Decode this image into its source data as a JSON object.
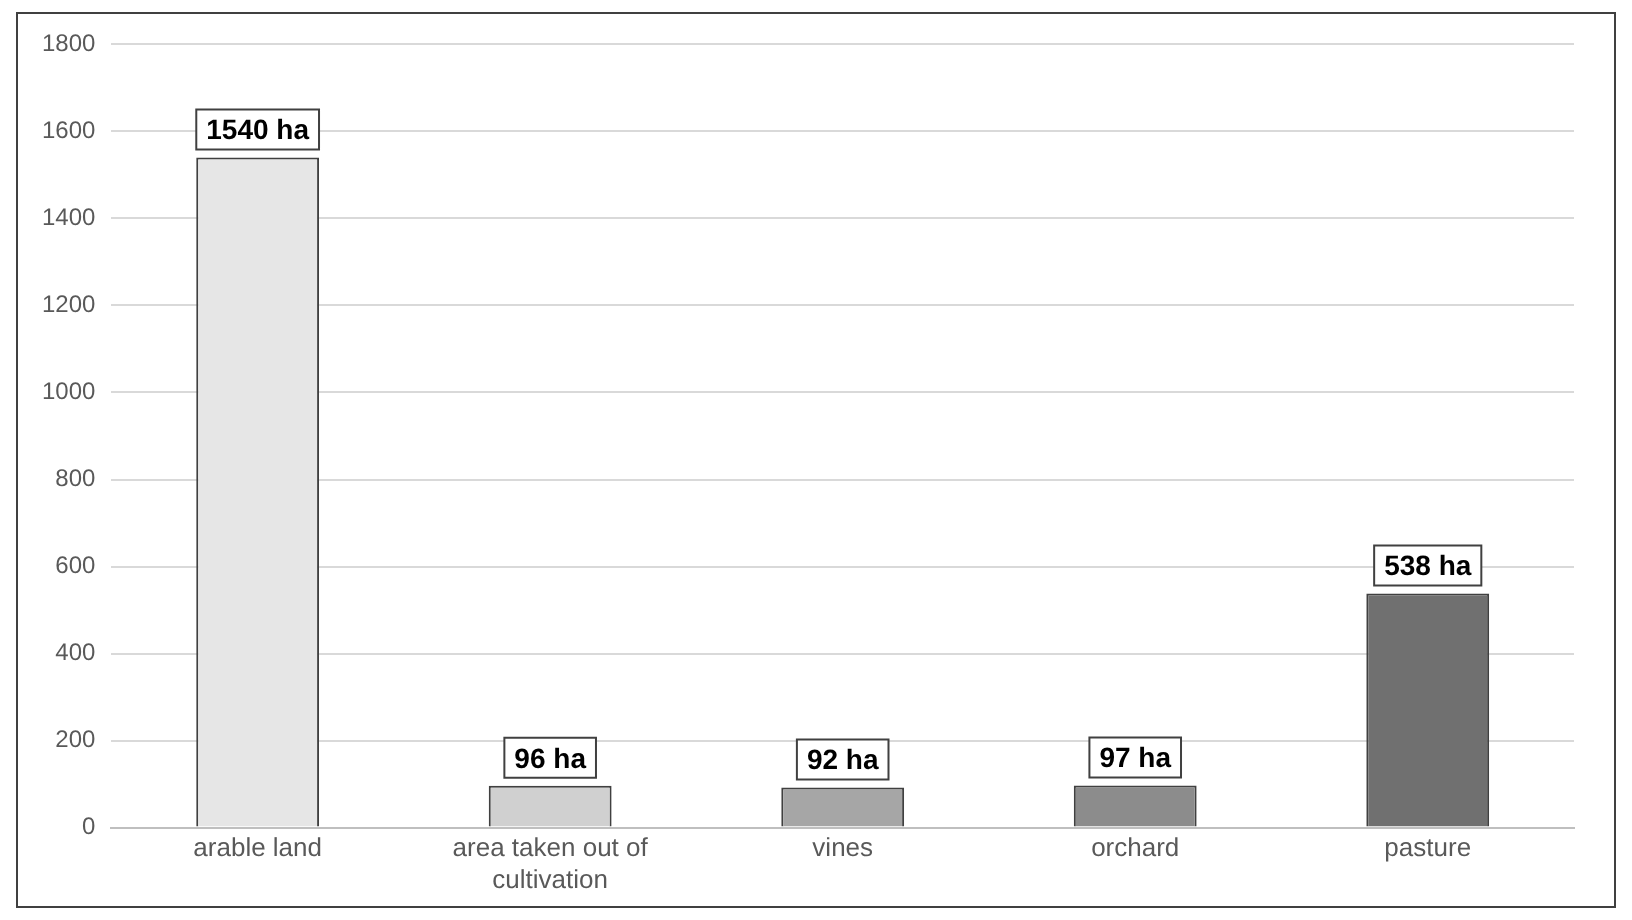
{
  "chart_data": {
    "type": "bar",
    "categories": [
      "arable land",
      "area taken out of cultivation",
      "vines",
      "orchard",
      "pasture"
    ],
    "values": [
      1540,
      96,
      92,
      97,
      538
    ],
    "colors": [
      "#e6e6e6",
      "#d0d0d0",
      "#a6a6a6",
      "#8c8c8c",
      "#707070"
    ],
    "value_labels": [
      "1540 ha",
      "96 ha",
      "92 ha",
      "97 ha",
      "538 ha"
    ],
    "ylim": [
      0,
      1800
    ],
    "yticks": [
      0,
      200,
      400,
      600,
      800,
      1000,
      1200,
      1400,
      1600,
      1800
    ],
    "grid": "y",
    "legend": false
  }
}
